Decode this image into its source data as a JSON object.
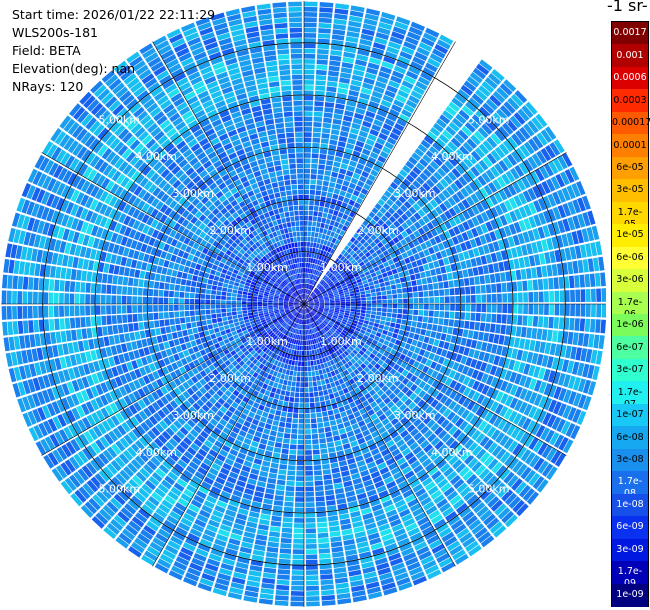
{
  "header": {
    "start_time": "Start time: 2026/01/22 22:11:29",
    "instrument": "WLS200s-181",
    "field": "Field: BETA",
    "elevation": "Elevation(deg): nan",
    "nrays": "NRays: 120"
  },
  "colorbar": {
    "title": "-1 sr-",
    "labels": [
      "0.0017",
      "0.001",
      "0.0006",
      "0.0003",
      "0.00017",
      "0.0001",
      "6e-05",
      "3e-05",
      "1.7e-05",
      "1e-05",
      "6e-06",
      "3e-06",
      "1.7e-06",
      "1e-06",
      "6e-07",
      "3e-07",
      "1.7e-07",
      "1e-07",
      "6e-08",
      "3e-08",
      "1.7e-08",
      "1e-08",
      "6e-09",
      "3e-09",
      "1.7e-09",
      "1e-09"
    ],
    "colors": [
      "#800000",
      "#b00000",
      "#dd0000",
      "#ff2a00",
      "#ff5a00",
      "#ff7f00",
      "#ffa000",
      "#ffbf00",
      "#ffd800",
      "#ffee00",
      "#ffff33",
      "#d8ff3a",
      "#a8ff50",
      "#7cfc5a",
      "#4dffa0",
      "#30ffd0",
      "#20f0f0",
      "#18c8f5",
      "#16a8f0",
      "#1990ee",
      "#1a70ec",
      "#1650e8",
      "#0a30f0",
      "#0018e0",
      "#0000b8",
      "#000080"
    ],
    "text_colors": [
      "#ffffff",
      "#ffffff",
      "#ffffff",
      "#000000",
      "#000000",
      "#000000",
      "#000000",
      "#000000",
      "#000000",
      "#000000",
      "#000000",
      "#000000",
      "#000000",
      "#000000",
      "#000000",
      "#000000",
      "#000000",
      "#000000",
      "#000000",
      "#000000",
      "#ffffff",
      "#ffffff",
      "#ffffff",
      "#ffffff",
      "#ffffff",
      "#ffffff"
    ]
  },
  "chart_data": {
    "type": "heatmap",
    "projection": "polar",
    "nrays": 120,
    "max_range_km": 5.8,
    "range_rings_km": [
      1,
      2,
      3,
      4,
      5
    ],
    "range_ring_labels": [
      "1.00km",
      "2.00km",
      "3.00km",
      "4.00km",
      "5.00km"
    ],
    "missing_sector_deg": [
      30,
      36
    ],
    "field": "BETA",
    "value_range": [
      1e-09,
      0.0017
    ],
    "scale": "log"
  }
}
